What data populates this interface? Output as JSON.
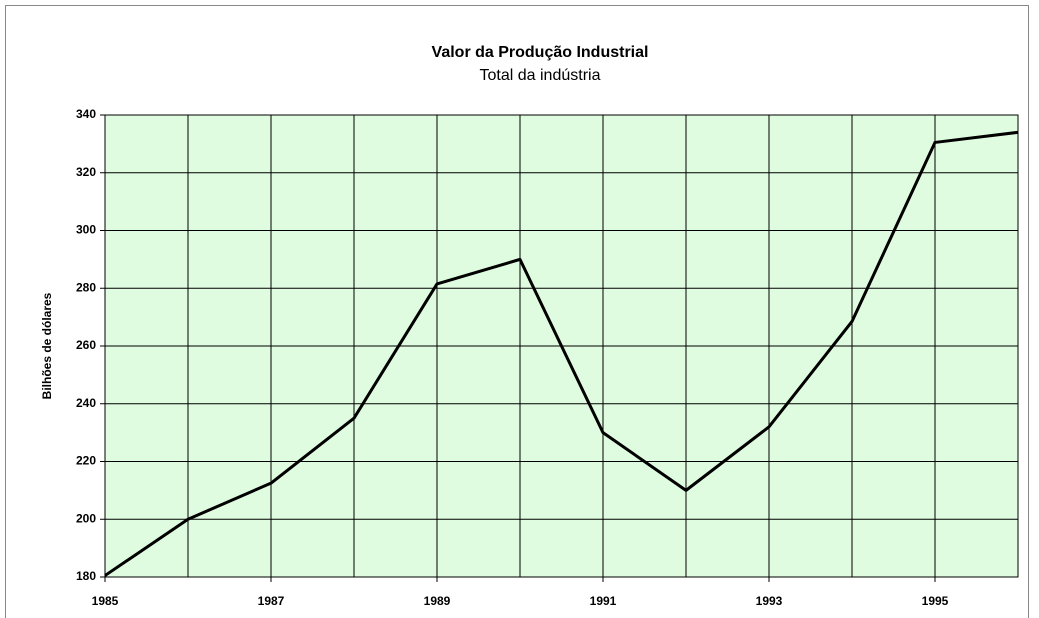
{
  "chart_data": {
    "type": "line",
    "title": "Valor da Produção Industrial",
    "subtitle": "Total da indústria",
    "y_label": "Bilhões de dólares",
    "x": [
      1985,
      1986,
      1987,
      1988,
      1989,
      1990,
      1991,
      1992,
      1993,
      1994,
      1995,
      1996
    ],
    "series": [
      {
        "name": "Total da indústria",
        "color": "#000000",
        "values": [
          180.5,
          200,
          212.5,
          235,
          281.5,
          290,
          230,
          210,
          232,
          268.5,
          330.5,
          334
        ]
      }
    ],
    "xlim": [
      1985,
      1996
    ],
    "xticks": [
      1985,
      1987,
      1989,
      1991,
      1993,
      1995
    ],
    "xminor": [
      1986,
      1988,
      1990,
      1992,
      1994,
      1996
    ],
    "ylim": [
      180,
      340
    ],
    "yticks": [
      180,
      200,
      220,
      240,
      260,
      280,
      300,
      320,
      340
    ],
    "grid": true,
    "plot_background": "#e0fce0"
  }
}
